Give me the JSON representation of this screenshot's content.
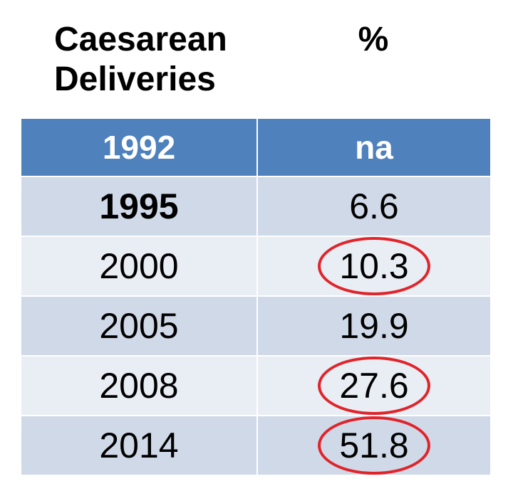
{
  "headings": {
    "left_line1": "Caesarean",
    "left_line2": "Deliveries",
    "right": "%"
  },
  "chart_data": {
    "type": "table",
    "columns": [
      "Caesarean Deliveries",
      "%"
    ],
    "header_row": {
      "year": "1992",
      "value": "na"
    },
    "rows": [
      {
        "year": "1995",
        "value": "6.6",
        "circled": false,
        "bold_year": true
      },
      {
        "year": "2000",
        "value": "10.3",
        "circled": true,
        "bold_year": false
      },
      {
        "year": "2005",
        "value": "19.9",
        "circled": false,
        "bold_year": false
      },
      {
        "year": "2008",
        "value": "27.6",
        "circled": true,
        "bold_year": false
      },
      {
        "year": "2014",
        "value": "51.8",
        "circled": true,
        "bold_year": false
      }
    ]
  },
  "colors": {
    "header_bg": "#4f81bd",
    "row_dark": "#d0d9e8",
    "row_light": "#e9edf4",
    "circle": "#e0242a"
  }
}
